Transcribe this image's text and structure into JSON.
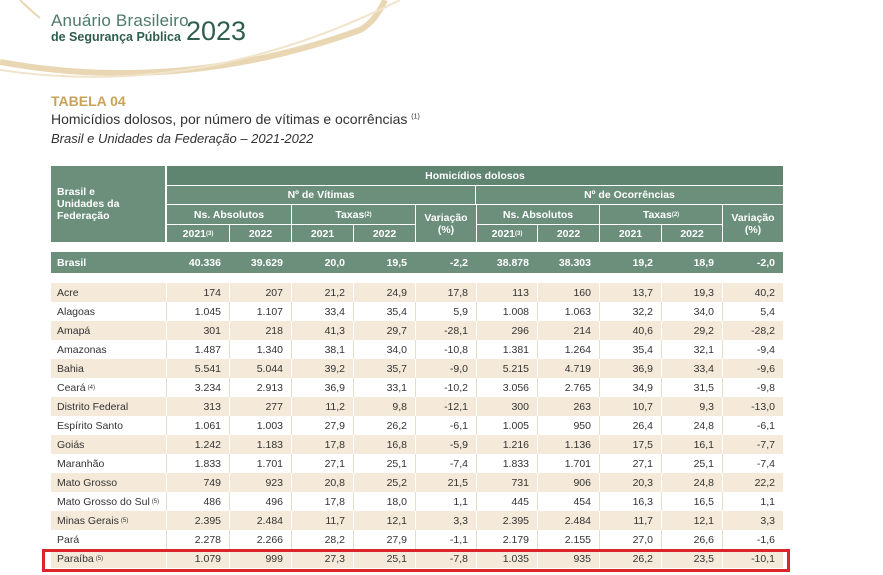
{
  "header": {
    "brand_line1": "Anuário Brasileiro",
    "brand_line2": "de Segurança Pública",
    "year": "2023"
  },
  "table": {
    "label": "TABELA 04",
    "title": "Homicídios dolosos, por número de vítimas e ocorrências",
    "title_note": "(1)",
    "subtitle": "Brasil e Unidades da Federação – 2021-2022",
    "col_region": "Brasil e\nUnidades da Federação",
    "group_main": "Homicídios dolosos",
    "group_victims": "Nº de Vítimas",
    "group_occurrences": "Nº de Ocorrências",
    "sub_abs": "Ns. Absolutos",
    "sub_rates": "Taxas",
    "sub_rates_note": "(2)",
    "sub_variation": "Variação",
    "variation_unit": "(%)",
    "year_2021": "2021",
    "year_2021_note": "(3)",
    "year_2022": "2022",
    "brasil": {
      "name": "Brasil",
      "values": [
        "40.336",
        "39.629",
        "20,0",
        "19,5",
        "-2,2",
        "38.878",
        "38.303",
        "19,2",
        "18,9",
        "-2,0"
      ]
    },
    "rows": [
      {
        "name": "Acre",
        "note": "",
        "values": [
          "174",
          "207",
          "21,2",
          "24,9",
          "17,8",
          "113",
          "160",
          "13,7",
          "19,3",
          "40,2"
        ]
      },
      {
        "name": "Alagoas",
        "note": "",
        "values": [
          "1.045",
          "1.107",
          "33,4",
          "35,4",
          "5,9",
          "1.008",
          "1.063",
          "32,2",
          "34,0",
          "5,4"
        ]
      },
      {
        "name": "Amapá",
        "note": "",
        "values": [
          "301",
          "218",
          "41,3",
          "29,7",
          "-28,1",
          "296",
          "214",
          "40,6",
          "29,2",
          "-28,2"
        ]
      },
      {
        "name": "Amazonas",
        "note": "",
        "values": [
          "1.487",
          "1.340",
          "38,1",
          "34,0",
          "-10,8",
          "1.381",
          "1.264",
          "35,4",
          "32,1",
          "-9,4"
        ]
      },
      {
        "name": "Bahia",
        "note": "",
        "values": [
          "5.541",
          "5.044",
          "39,2",
          "35,7",
          "-9,0",
          "5.215",
          "4.719",
          "36,9",
          "33,4",
          "-9,6"
        ]
      },
      {
        "name": "Ceará",
        "note": "(4)",
        "values": [
          "3.234",
          "2.913",
          "36,9",
          "33,1",
          "-10,2",
          "3.056",
          "2.765",
          "34,9",
          "31,5",
          "-9,8"
        ]
      },
      {
        "name": "Distrito Federal",
        "note": "",
        "values": [
          "313",
          "277",
          "11,2",
          "9,8",
          "-12,1",
          "300",
          "263",
          "10,7",
          "9,3",
          "-13,0"
        ]
      },
      {
        "name": "Espírito Santo",
        "note": "",
        "values": [
          "1.061",
          "1.003",
          "27,9",
          "26,2",
          "-6,1",
          "1.005",
          "950",
          "26,4",
          "24,8",
          "-6,1"
        ]
      },
      {
        "name": "Goiás",
        "note": "",
        "values": [
          "1.242",
          "1.183",
          "17,8",
          "16,8",
          "-5,9",
          "1.216",
          "1.136",
          "17,5",
          "16,1",
          "-7,7"
        ]
      },
      {
        "name": "Maranhão",
        "note": "",
        "values": [
          "1.833",
          "1.701",
          "27,1",
          "25,1",
          "-7,4",
          "1.833",
          "1.701",
          "27,1",
          "25,1",
          "-7,4"
        ]
      },
      {
        "name": "Mato Grosso",
        "note": "",
        "values": [
          "749",
          "923",
          "20,8",
          "25,2",
          "21,5",
          "731",
          "906",
          "20,3",
          "24,8",
          "22,2"
        ]
      },
      {
        "name": "Mato Grosso do Sul",
        "note": "(5)",
        "values": [
          "486",
          "496",
          "17,8",
          "18,0",
          "1,1",
          "445",
          "454",
          "16,3",
          "16,5",
          "1,1"
        ]
      },
      {
        "name": "Minas Gerais",
        "note": "(5)",
        "values": [
          "2.395",
          "2.484",
          "11,7",
          "12,1",
          "3,3",
          "2.395",
          "2.484",
          "11,7",
          "12,1",
          "3,3"
        ]
      },
      {
        "name": "Pará",
        "note": "",
        "values": [
          "2.278",
          "2.266",
          "28,2",
          "27,9",
          "-1,1",
          "2.179",
          "2.155",
          "27,0",
          "26,6",
          "-1,6"
        ]
      },
      {
        "name": "Paraíba",
        "note": "(5)",
        "values": [
          "1.079",
          "999",
          "27,3",
          "25,1",
          "-7,8",
          "1.035",
          "935",
          "26,2",
          "23,5",
          "-10,1"
        ]
      }
    ]
  },
  "colors": {
    "header_green": "#6b8f7b",
    "row_beige": "#f5ead9",
    "brand_gold": "#c9a25a",
    "highlight_red": "#d9252b"
  }
}
